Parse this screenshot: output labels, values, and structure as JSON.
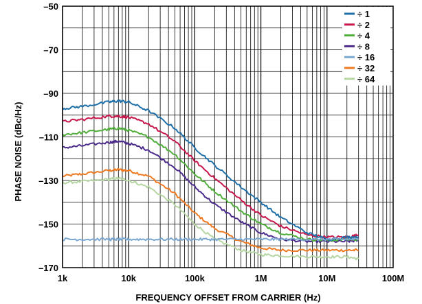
{
  "chart_data": {
    "type": "line",
    "title": "",
    "xlabel": "FREQUENCY OFFSET FROM CARRIER (Hz)",
    "ylabel": "PHASE NOISE (dBc/Hz)",
    "x_scale": "log",
    "xlim": [
      1000,
      100000000
    ],
    "ylim": [
      -170,
      -50
    ],
    "grid": true,
    "legend_position": "top-right",
    "x_ticks": [
      {
        "value": 1000,
        "label": "1k"
      },
      {
        "value": 10000,
        "label": "10k"
      },
      {
        "value": 100000,
        "label": "100k"
      },
      {
        "value": 1000000,
        "label": "1M"
      },
      {
        "value": 10000000,
        "label": "10M"
      },
      {
        "value": 100000000,
        "label": "100M"
      }
    ],
    "y_ticks": [
      {
        "value": -50,
        "label": "–50"
      },
      {
        "value": -70,
        "label": "–70"
      },
      {
        "value": -90,
        "label": "–90"
      },
      {
        "value": -110,
        "label": "–110"
      },
      {
        "value": -130,
        "label": "–130"
      },
      {
        "value": -150,
        "label": "–150"
      },
      {
        "value": -170,
        "label": "–170"
      }
    ],
    "x": [
      1000,
      2000,
      5000,
      7000,
      10000,
      20000,
      50000,
      100000,
      200000,
      500000,
      1000000,
      2000000,
      5000000,
      10000000,
      20000000,
      30000000
    ],
    "series": [
      {
        "name": "÷ 1",
        "color": "#1f6fa8",
        "values": [
          -97,
          -96,
          -94,
          -93.5,
          -94,
          -98,
          -106,
          -115,
          -123,
          -133,
          -140,
          -147,
          -154,
          -157,
          -156,
          -156
        ]
      },
      {
        "name": "÷ 2",
        "color": "#c8174b",
        "values": [
          -103,
          -102,
          -100.5,
          -100.5,
          -101,
          -104,
          -112,
          -121,
          -129,
          -139,
          -146,
          -151,
          -155,
          -156,
          -156,
          -155
        ]
      },
      {
        "name": "÷ 4",
        "color": "#4fae3a",
        "values": [
          -109,
          -108,
          -106.5,
          -106,
          -107,
          -110,
          -118,
          -127,
          -135,
          -144,
          -150,
          -154,
          -157,
          -157.5,
          -157,
          -157
        ]
      },
      {
        "name": "÷ 8",
        "color": "#4b2a8c",
        "values": [
          -115,
          -114,
          -112.5,
          -112,
          -113,
          -116,
          -124,
          -133,
          -141,
          -149,
          -154,
          -157,
          -158,
          -158,
          -158,
          -157.5
        ]
      },
      {
        "name": "÷ 16",
        "color": "#7aa7cf",
        "values": [
          -157,
          -157,
          -157,
          -157,
          -157,
          -157,
          -157,
          -157,
          -157,
          -157,
          -157,
          -157,
          -157,
          -157,
          -157,
          -157
        ]
      },
      {
        "name": "÷ 32",
        "color": "#ee7a22",
        "values": [
          -128,
          -127,
          -125.5,
          -125,
          -125.5,
          -128,
          -136,
          -145,
          -152,
          -158,
          -161,
          -162,
          -162,
          -162,
          -162,
          -162
        ]
      },
      {
        "name": "÷ 64",
        "color": "#b5d6a3",
        "values": [
          -131,
          -130.5,
          -129.5,
          -129,
          -130,
          -133,
          -141,
          -150,
          -157,
          -162,
          -164,
          -164.5,
          -165,
          -165,
          -165,
          -166
        ]
      }
    ]
  }
}
